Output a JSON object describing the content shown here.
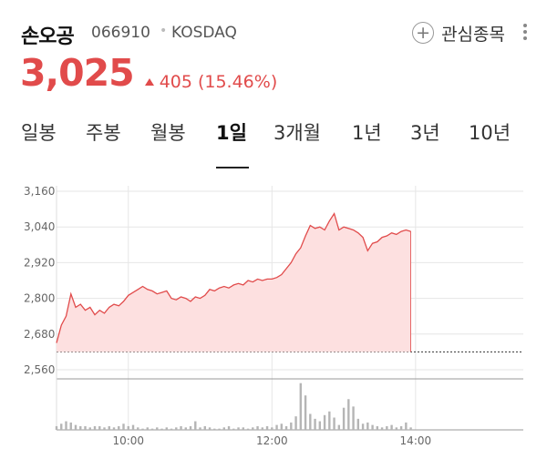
{
  "header": {
    "stock_name": "손오공",
    "stock_code": "066910",
    "separator": "•",
    "market": "KOSDAQ",
    "watchlist_label": "관심종목"
  },
  "price": {
    "current": "3,025",
    "change": "405",
    "change_pct": "(15.46%)",
    "direction": "up",
    "color": "#e14b4b"
  },
  "tabs": [
    "일봉",
    "주봉",
    "월봉",
    "1일",
    "3개월",
    "1년",
    "3년",
    "10년"
  ],
  "active_tab": "1일",
  "chart_data": {
    "type": "area",
    "y_ticks": [
      "3,160",
      "3,040",
      "2,920",
      "2,800",
      "2,680",
      "2,560"
    ],
    "x_ticks": [
      "10:00",
      "12:00",
      "14:00"
    ],
    "ylim": [
      2560,
      3160
    ],
    "prev_close": 2620,
    "price_series": [
      {
        "t": "09:00",
        "v": 2650
      },
      {
        "t": "09:04",
        "v": 2710
      },
      {
        "t": "09:08",
        "v": 2740
      },
      {
        "t": "09:12",
        "v": 2815
      },
      {
        "t": "09:16",
        "v": 2770
      },
      {
        "t": "09:20",
        "v": 2780
      },
      {
        "t": "09:24",
        "v": 2760
      },
      {
        "t": "09:28",
        "v": 2770
      },
      {
        "t": "09:32",
        "v": 2745
      },
      {
        "t": "09:36",
        "v": 2760
      },
      {
        "t": "09:40",
        "v": 2750
      },
      {
        "t": "09:44",
        "v": 2770
      },
      {
        "t": "09:48",
        "v": 2780
      },
      {
        "t": "09:52",
        "v": 2775
      },
      {
        "t": "09:56",
        "v": 2790
      },
      {
        "t": "10:00",
        "v": 2810
      },
      {
        "t": "10:04",
        "v": 2820
      },
      {
        "t": "10:08",
        "v": 2830
      },
      {
        "t": "10:12",
        "v": 2840
      },
      {
        "t": "10:16",
        "v": 2830
      },
      {
        "t": "10:20",
        "v": 2825
      },
      {
        "t": "10:24",
        "v": 2815
      },
      {
        "t": "10:28",
        "v": 2820
      },
      {
        "t": "10:32",
        "v": 2825
      },
      {
        "t": "10:36",
        "v": 2800
      },
      {
        "t": "10:40",
        "v": 2795
      },
      {
        "t": "10:44",
        "v": 2805
      },
      {
        "t": "10:48",
        "v": 2800
      },
      {
        "t": "10:52",
        "v": 2790
      },
      {
        "t": "10:56",
        "v": 2805
      },
      {
        "t": "11:00",
        "v": 2800
      },
      {
        "t": "11:04",
        "v": 2810
      },
      {
        "t": "11:08",
        "v": 2830
      },
      {
        "t": "11:12",
        "v": 2825
      },
      {
        "t": "11:16",
        "v": 2835
      },
      {
        "t": "11:20",
        "v": 2840
      },
      {
        "t": "11:24",
        "v": 2835
      },
      {
        "t": "11:28",
        "v": 2845
      },
      {
        "t": "11:32",
        "v": 2850
      },
      {
        "t": "11:36",
        "v": 2845
      },
      {
        "t": "11:40",
        "v": 2860
      },
      {
        "t": "11:44",
        "v": 2855
      },
      {
        "t": "11:48",
        "v": 2865
      },
      {
        "t": "11:52",
        "v": 2860
      },
      {
        "t": "11:56",
        "v": 2865
      },
      {
        "t": "12:00",
        "v": 2865
      },
      {
        "t": "12:04",
        "v": 2870
      },
      {
        "t": "12:08",
        "v": 2880
      },
      {
        "t": "12:12",
        "v": 2900
      },
      {
        "t": "12:16",
        "v": 2920
      },
      {
        "t": "12:20",
        "v": 2950
      },
      {
        "t": "12:24",
        "v": 2970
      },
      {
        "t": "12:28",
        "v": 3010
      },
      {
        "t": "12:32",
        "v": 3045
      },
      {
        "t": "12:36",
        "v": 3035
      },
      {
        "t": "12:40",
        "v": 3040
      },
      {
        "t": "12:44",
        "v": 3030
      },
      {
        "t": "12:48",
        "v": 3060
      },
      {
        "t": "12:52",
        "v": 3085
      },
      {
        "t": "12:56",
        "v": 3030
      },
      {
        "t": "13:00",
        "v": 3040
      },
      {
        "t": "13:04",
        "v": 3035
      },
      {
        "t": "13:08",
        "v": 3030
      },
      {
        "t": "13:12",
        "v": 3020
      },
      {
        "t": "13:16",
        "v": 3005
      },
      {
        "t": "13:20",
        "v": 2960
      },
      {
        "t": "13:24",
        "v": 2985
      },
      {
        "t": "13:28",
        "v": 2990
      },
      {
        "t": "13:32",
        "v": 3005
      },
      {
        "t": "13:36",
        "v": 3010
      },
      {
        "t": "13:40",
        "v": 3020
      },
      {
        "t": "13:44",
        "v": 3015
      },
      {
        "t": "13:48",
        "v": 3025
      },
      {
        "t": "13:52",
        "v": 3030
      },
      {
        "t": "13:56",
        "v": 3025
      }
    ],
    "volume_series": [
      {
        "t": "09:00",
        "v": 3
      },
      {
        "t": "09:04",
        "v": 5
      },
      {
        "t": "09:08",
        "v": 7
      },
      {
        "t": "09:12",
        "v": 6
      },
      {
        "t": "09:16",
        "v": 4
      },
      {
        "t": "09:20",
        "v": 3
      },
      {
        "t": "09:24",
        "v": 3
      },
      {
        "t": "09:28",
        "v": 2
      },
      {
        "t": "09:32",
        "v": 3
      },
      {
        "t": "09:36",
        "v": 3
      },
      {
        "t": "09:40",
        "v": 2
      },
      {
        "t": "09:44",
        "v": 3
      },
      {
        "t": "09:48",
        "v": 2
      },
      {
        "t": "09:52",
        "v": 3
      },
      {
        "t": "09:56",
        "v": 5
      },
      {
        "t": "10:00",
        "v": 3
      },
      {
        "t": "10:04",
        "v": 4
      },
      {
        "t": "10:08",
        "v": 2
      },
      {
        "t": "10:12",
        "v": 1
      },
      {
        "t": "10:16",
        "v": 2
      },
      {
        "t": "10:20",
        "v": 1
      },
      {
        "t": "10:24",
        "v": 2
      },
      {
        "t": "10:28",
        "v": 1
      },
      {
        "t": "10:32",
        "v": 2
      },
      {
        "t": "10:36",
        "v": 1
      },
      {
        "t": "10:40",
        "v": 2
      },
      {
        "t": "10:44",
        "v": 3
      },
      {
        "t": "10:48",
        "v": 2
      },
      {
        "t": "10:52",
        "v": 3
      },
      {
        "t": "10:56",
        "v": 7
      },
      {
        "t": "11:00",
        "v": 2
      },
      {
        "t": "11:04",
        "v": 3
      },
      {
        "t": "11:08",
        "v": 2
      },
      {
        "t": "11:12",
        "v": 1
      },
      {
        "t": "11:16",
        "v": 1
      },
      {
        "t": "11:20",
        "v": 2
      },
      {
        "t": "11:24",
        "v": 3
      },
      {
        "t": "11:28",
        "v": 1
      },
      {
        "t": "11:32",
        "v": 2
      },
      {
        "t": "11:36",
        "v": 2
      },
      {
        "t": "11:40",
        "v": 1
      },
      {
        "t": "11:44",
        "v": 2
      },
      {
        "t": "11:48",
        "v": 3
      },
      {
        "t": "11:52",
        "v": 2
      },
      {
        "t": "11:56",
        "v": 3
      },
      {
        "t": "12:00",
        "v": 2
      },
      {
        "t": "12:04",
        "v": 4
      },
      {
        "t": "12:08",
        "v": 5
      },
      {
        "t": "12:12",
        "v": 3
      },
      {
        "t": "12:16",
        "v": 6
      },
      {
        "t": "12:20",
        "v": 11
      },
      {
        "t": "12:24",
        "v": 38
      },
      {
        "t": "12:28",
        "v": 28
      },
      {
        "t": "12:32",
        "v": 13
      },
      {
        "t": "12:36",
        "v": 9
      },
      {
        "t": "12:40",
        "v": 7
      },
      {
        "t": "12:44",
        "v": 12
      },
      {
        "t": "12:48",
        "v": 15
      },
      {
        "t": "12:52",
        "v": 10
      },
      {
        "t": "12:56",
        "v": 4
      },
      {
        "t": "13:00",
        "v": 18
      },
      {
        "t": "13:04",
        "v": 25
      },
      {
        "t": "13:08",
        "v": 19
      },
      {
        "t": "13:12",
        "v": 9
      },
      {
        "t": "13:16",
        "v": 5
      },
      {
        "t": "13:20",
        "v": 6
      },
      {
        "t": "13:24",
        "v": 4
      },
      {
        "t": "13:28",
        "v": 3
      },
      {
        "t": "13:32",
        "v": 2
      },
      {
        "t": "13:36",
        "v": 3
      },
      {
        "t": "13:40",
        "v": 4
      },
      {
        "t": "13:44",
        "v": 2
      },
      {
        "t": "13:48",
        "v": 3
      },
      {
        "t": "13:52",
        "v": 6
      },
      {
        "t": "13:56",
        "v": 2
      }
    ],
    "colors": {
      "line": "#e14b4b",
      "fill": "#fde0e0",
      "volume": "#b5b5b5",
      "grid": "#e6e6e6"
    },
    "grid": true
  }
}
